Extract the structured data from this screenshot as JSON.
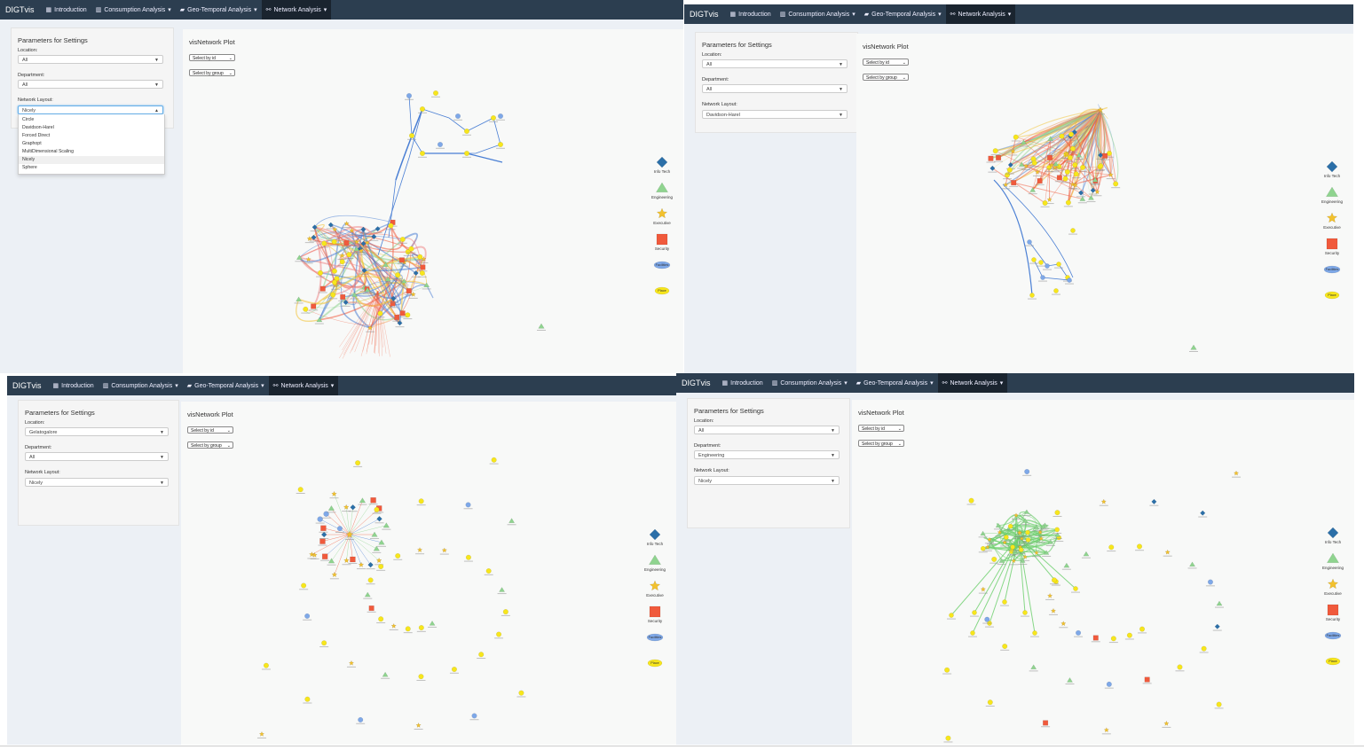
{
  "nav": {
    "brand": "DIGTvis",
    "items": [
      "Introduction",
      "Consumption Analysis",
      "Geo-Temporal Analysis",
      "Network Analysis"
    ],
    "active": "Network Analysis"
  },
  "sidebar": {
    "title": "Parameters for Settings",
    "location_label": "Location:",
    "department_label": "Department:",
    "layout_label": "Network Layout:"
  },
  "plot": {
    "title": "visNetwork Plot",
    "select_id": "Select by id",
    "select_group": "Select by group"
  },
  "legend": [
    "Info Tech",
    "Engineering",
    "Executive",
    "Security",
    "Facilities",
    "Place"
  ],
  "colors": {
    "navbar": "#2c3e50",
    "info_tech": "#2b6fa8",
    "engineering": "#8fd48f",
    "executive": "#f2c12e",
    "security": "#f05a3c",
    "facilities": "#7ea8e8",
    "place": "#f7e61c"
  },
  "panels": [
    {
      "location": "All",
      "department": "All",
      "layout": "Nicely",
      "layout_open": true,
      "layout_options": [
        "Circle",
        "Davidson-Harel",
        "Forced Direct",
        "Graphopt",
        "MultiDimensional Scaling",
        "Nicely",
        "Sphere"
      ]
    },
    {
      "location": "All",
      "department": "All",
      "layout": "Davidson-Harel",
      "layout_open": false
    },
    {
      "location": "Gelatogalore",
      "department": "All",
      "layout": "Nicely",
      "layout_open": false
    },
    {
      "location": "All",
      "department": "Engineering",
      "layout": "Nicely",
      "layout_open": false
    }
  ]
}
